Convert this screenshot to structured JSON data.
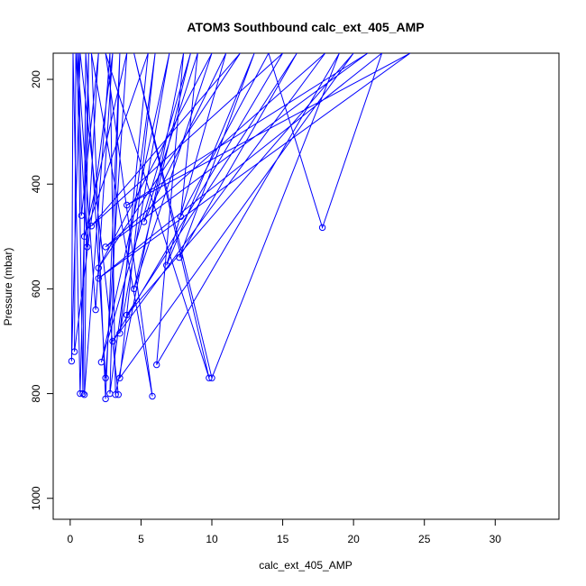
{
  "chart_data": {
    "type": "line",
    "title": "ATOM3 Southbound calc_ext_405_AMP",
    "xlabel": "calc_ext_405_AMP",
    "ylabel": "Pressure (mbar)",
    "xlim": [
      -1.2,
      34.5
    ],
    "ylim": [
      1040,
      150
    ],
    "y_reversed": true,
    "grid": false,
    "legend": "none",
    "x_ticks": [
      0,
      5,
      10,
      15,
      20,
      25,
      30
    ],
    "y_ticks": [
      200,
      400,
      600,
      800,
      1000
    ],
    "series_color": "#0000ff",
    "marker": "open-circle",
    "series": [
      {
        "points": [
          [
            0.6,
            150
          ],
          [
            0.8,
            460
          ],
          [
            2.0,
            150
          ],
          [
            1.2,
            520
          ],
          [
            0.4,
            150
          ],
          [
            0.3,
            720
          ],
          [
            3.0,
            150
          ],
          [
            1.8,
            640
          ],
          [
            0.5,
            150
          ],
          [
            0.9,
            800
          ],
          [
            1.1,
            150
          ],
          [
            2.5,
            770
          ],
          [
            4.0,
            150
          ],
          [
            1.0,
            500
          ],
          [
            5.5,
            150
          ],
          [
            3.5,
            685
          ],
          [
            7.0,
            150
          ],
          [
            2.2,
            740
          ],
          [
            8.5,
            150
          ],
          [
            4.5,
            600
          ],
          [
            10.0,
            150
          ],
          [
            2.0,
            560
          ],
          [
            12.0,
            150
          ],
          [
            1.5,
            480
          ],
          [
            15.0,
            150
          ],
          [
            3.0,
            700
          ],
          [
            18.0,
            150
          ],
          [
            2.5,
            520
          ],
          [
            21.0,
            150
          ],
          [
            4.0,
            440
          ],
          [
            24.0,
            150
          ],
          [
            2.0,
            580
          ],
          [
            22.0,
            150
          ],
          [
            17.8,
            483
          ],
          [
            14.0,
            150
          ],
          [
            7.8,
            462
          ],
          [
            9.0,
            150
          ],
          [
            5.2,
            472
          ],
          [
            11.0,
            150
          ],
          [
            6.8,
            555
          ],
          [
            13.0,
            150
          ],
          [
            7.7,
            540
          ],
          [
            16.0,
            150
          ],
          [
            4.0,
            650
          ],
          [
            20.0,
            150
          ],
          [
            3.5,
            770
          ],
          [
            6.0,
            150
          ],
          [
            2.8,
            800
          ],
          [
            3.5,
            150
          ],
          [
            2.5,
            810
          ],
          [
            1.5,
            150
          ],
          [
            5.8,
            805
          ],
          [
            2.5,
            150
          ],
          [
            9.8,
            770
          ],
          [
            4.5,
            150
          ],
          [
            10.0,
            770
          ],
          [
            19.0,
            150
          ],
          [
            6.1,
            745
          ],
          [
            8.0,
            150
          ],
          [
            3.2,
            802
          ],
          [
            2.8,
            150
          ],
          [
            1.0,
            802
          ],
          [
            1.3,
            150
          ],
          [
            0.7,
            800
          ],
          [
            0.2,
            150
          ],
          [
            0.1,
            738
          ],
          [
            0.7,
            150
          ],
          [
            3.4,
            802
          ]
        ]
      }
    ]
  }
}
